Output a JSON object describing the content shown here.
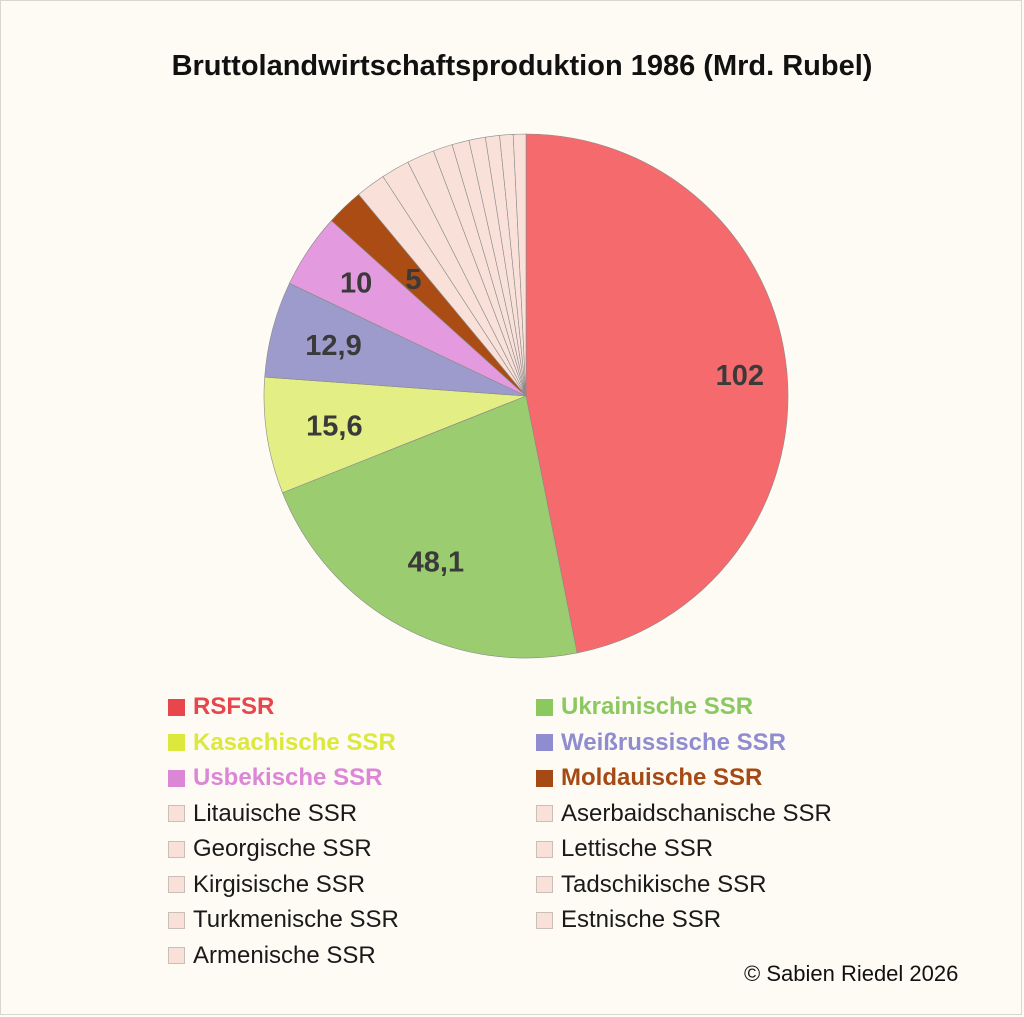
{
  "title": "Bruttolandwirtschaftsproduktion 1986 (Mrd. Rubel)",
  "copyright": "©  Sabien Riedel 2026",
  "chart_data": {
    "type": "pie",
    "title": "Bruttolandwirtschaftsproduktion 1986 (Mrd. Rubel)",
    "start_angle_deg": 0,
    "direction": "clockwise",
    "legend_position": "bottom",
    "slices": [
      {
        "name": "RSFSR",
        "value": 102,
        "label": "102",
        "color": "#f46a6d",
        "legend_color": "#e8454d",
        "emphasized": true
      },
      {
        "name": "Ukrainische SSR",
        "value": 48.1,
        "label": "48,1",
        "color": "#9ccc70",
        "legend_color": "#8cc860",
        "emphasized": true
      },
      {
        "name": "Kasachische SSR",
        "value": 15.6,
        "label": "15,6",
        "color": "#e3ef84",
        "legend_color": "#dce83c",
        "emphasized": true
      },
      {
        "name": "Weißrussische SSR",
        "value": 12.9,
        "label": "12,9",
        "color": "#9d9bcc",
        "legend_color": "#8f8cd0",
        "emphasized": true
      },
      {
        "name": "Usbekische SSR",
        "value": 10,
        "label": "10",
        "color": "#e49ade",
        "legend_color": "#dc86d6",
        "emphasized": true
      },
      {
        "name": "Moldauische SSR",
        "value": 5,
        "label": "5",
        "color": "#ab4c14",
        "legend_color": "#a54a14",
        "emphasized": true
      },
      {
        "name": "Litauische SSR",
        "value": 4.0,
        "label": "",
        "color": "#f9e1d9",
        "legend_color": "#f9e1d9",
        "emphasized": false
      },
      {
        "name": "Aserbaidschanische SSR",
        "value": 3.8,
        "label": "",
        "color": "#f9e1d9",
        "legend_color": "#f9e1d9",
        "emphasized": false
      },
      {
        "name": "Georgische SSR",
        "value": 3.7,
        "label": "",
        "color": "#f9e1d9",
        "legend_color": "#f9e1d9",
        "emphasized": false
      },
      {
        "name": "Lettische SSR",
        "value": 2.6,
        "label": "",
        "color": "#f9e1d9",
        "legend_color": "#f9e1d9",
        "emphasized": false
      },
      {
        "name": "Kirgisische SSR",
        "value": 2.3,
        "label": "",
        "color": "#f9e1d9",
        "legend_color": "#f9e1d9",
        "emphasized": false
      },
      {
        "name": "Tadschikische SSR",
        "value": 2.2,
        "label": "",
        "color": "#f9e1d9",
        "legend_color": "#f9e1d9",
        "emphasized": false
      },
      {
        "name": "Turkmenische SSR",
        "value": 1.9,
        "label": "",
        "color": "#f9e1d9",
        "legend_color": "#f9e1d9",
        "emphasized": false
      },
      {
        "name": "Estnische SSR",
        "value": 1.8,
        "label": "",
        "color": "#f9e1d9",
        "legend_color": "#f9e1d9",
        "emphasized": false
      },
      {
        "name": "Armenische SSR",
        "value": 1.7,
        "label": "",
        "color": "#f9e1d9",
        "legend_color": "#f9e1d9",
        "emphasized": false
      }
    ]
  }
}
